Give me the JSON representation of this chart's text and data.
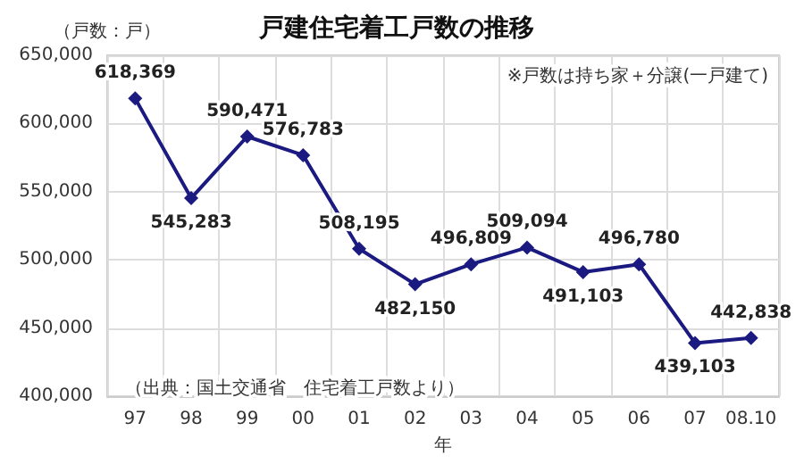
{
  "chart_data": {
    "type": "line",
    "title": "戸建住宅着工戸数の推移",
    "ylabel": "（戸数：戸）",
    "xlabel": "年",
    "annotations": [
      "※戸数は持ち家＋分譲(一戸建て)",
      "（出典：国土交通省　住宅着工戸数より）"
    ],
    "categories": [
      "97",
      "98",
      "99",
      "00",
      "01",
      "02",
      "03",
      "04",
      "05",
      "06",
      "07",
      "08.10"
    ],
    "series": [
      {
        "color": "#1a1a80",
        "values": [
          618369,
          545283,
          590471,
          576783,
          508195,
          482150,
          496809,
          509094,
          491103,
          496780,
          439103,
          442838
        ],
        "value_labels": [
          "618,369",
          "545,283",
          "590,471",
          "576,783",
          "508,195",
          "482,150",
          "496,809",
          "509,094",
          "491,103",
          "496,780",
          "439,103",
          "442,838"
        ]
      }
    ],
    "ylim": [
      400000,
      650000
    ],
    "yticks": [
      {
        "value": 400000,
        "label": "400,000"
      },
      {
        "value": 450000,
        "label": "450,000"
      },
      {
        "value": 500000,
        "label": "500,000"
      },
      {
        "value": 550000,
        "label": "550,000"
      },
      {
        "value": 600000,
        "label": "600,000"
      },
      {
        "value": 650000,
        "label": "650,000"
      }
    ],
    "grid": true,
    "marker": "diamond",
    "line_style": "solid"
  }
}
